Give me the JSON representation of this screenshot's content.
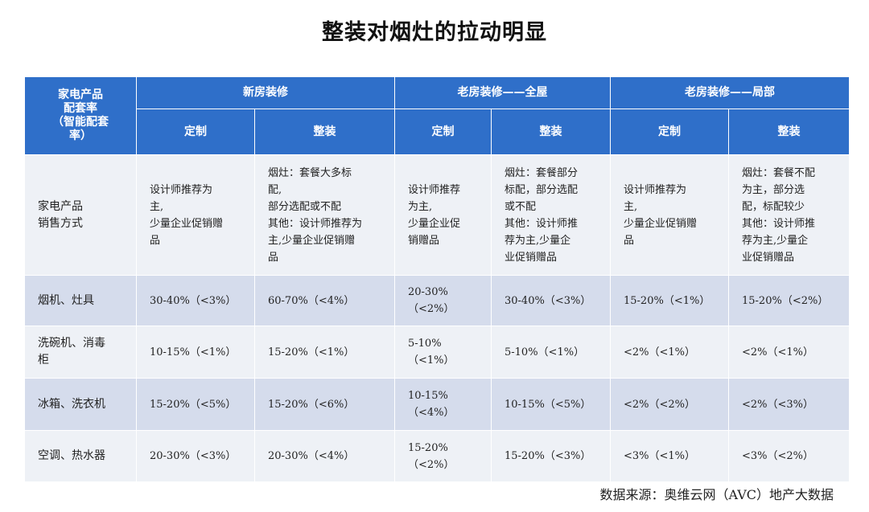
{
  "title": "整装对烟灶的拉动明显",
  "header": {
    "corner": "家电产品配套率（智能配套率）",
    "corner_lines": [
      "家电产品",
      "配套率",
      "（智能配套",
      "率）"
    ],
    "groups": [
      "新房装修",
      "老房装修——全屋",
      "老房装修——局部"
    ],
    "subheaders": [
      "定制",
      "整装",
      "定制",
      "整装",
      "定制",
      "整装"
    ]
  },
  "rows": [
    {
      "label_lines": [
        "家电产品",
        "销售方式"
      ],
      "cells": [
        [
          "设计师推荐为",
          "主,",
          "少量企业促销赠",
          "品"
        ],
        [
          "烟灶：套餐大多标",
          "配,",
          "部分选配或不配",
          "其他：设计师推荐为",
          "主,少量企业促销赠",
          "品"
        ],
        [
          "设计师推荐",
          "为主,",
          "少量企业促",
          "销赠品"
        ],
        [
          "烟灶：套餐部分",
          "标配，部分选配",
          "或不配",
          "其他：设计师推",
          "荐为主,少量企",
          "业促销赠品"
        ],
        [
          "设计师推荐为",
          "主,",
          "少量企业促销赠",
          "品"
        ],
        [
          "烟灶：套餐不配",
          "为主，部分选",
          "配，标配较少",
          "其他：设计师推",
          "荐为主,少量企",
          "业促销赠品"
        ]
      ]
    },
    {
      "label_lines": [
        "烟机、灶具"
      ],
      "cells": [
        [
          "30-40%（<3%）"
        ],
        [
          "60-70%（<4%）"
        ],
        [
          "20-30%",
          "（<2%）"
        ],
        [
          "30-40%（<3%）"
        ],
        [
          "15-20%（<1%）"
        ],
        [
          "15-20%（<2%）"
        ]
      ]
    },
    {
      "label_lines": [
        "洗碗机、消毒",
        "柜"
      ],
      "cells": [
        [
          "10-15%（<1%）"
        ],
        [
          "15-20%（<1%）"
        ],
        [
          "5-10%",
          "（<1%）"
        ],
        [
          "5-10%（<1%）"
        ],
        [
          "<2%（<1%）"
        ],
        [
          "<2%（<1%）"
        ]
      ]
    },
    {
      "label_lines": [
        "冰箱、洗衣机"
      ],
      "cells": [
        [
          "15-20%（<5%）"
        ],
        [
          "15-20%（<6%）"
        ],
        [
          "10-15%",
          "（<4%）"
        ],
        [
          "10-15%（<5%）"
        ],
        [
          "<2%（<2%）"
        ],
        [
          "<2%（<3%）"
        ]
      ]
    },
    {
      "label_lines": [
        "空调、热水器"
      ],
      "cells": [
        [
          "20-30%（<3%）"
        ],
        [
          "20-30%（<4%）"
        ],
        [
          "15-20%",
          "（<2%）"
        ],
        [
          "15-20%（<3%）"
        ],
        [
          "<3%（<1%）"
        ],
        [
          "<3%（<2%）"
        ]
      ]
    }
  ],
  "source": "数据来源：奥维云网（AVC）地产大数据"
}
